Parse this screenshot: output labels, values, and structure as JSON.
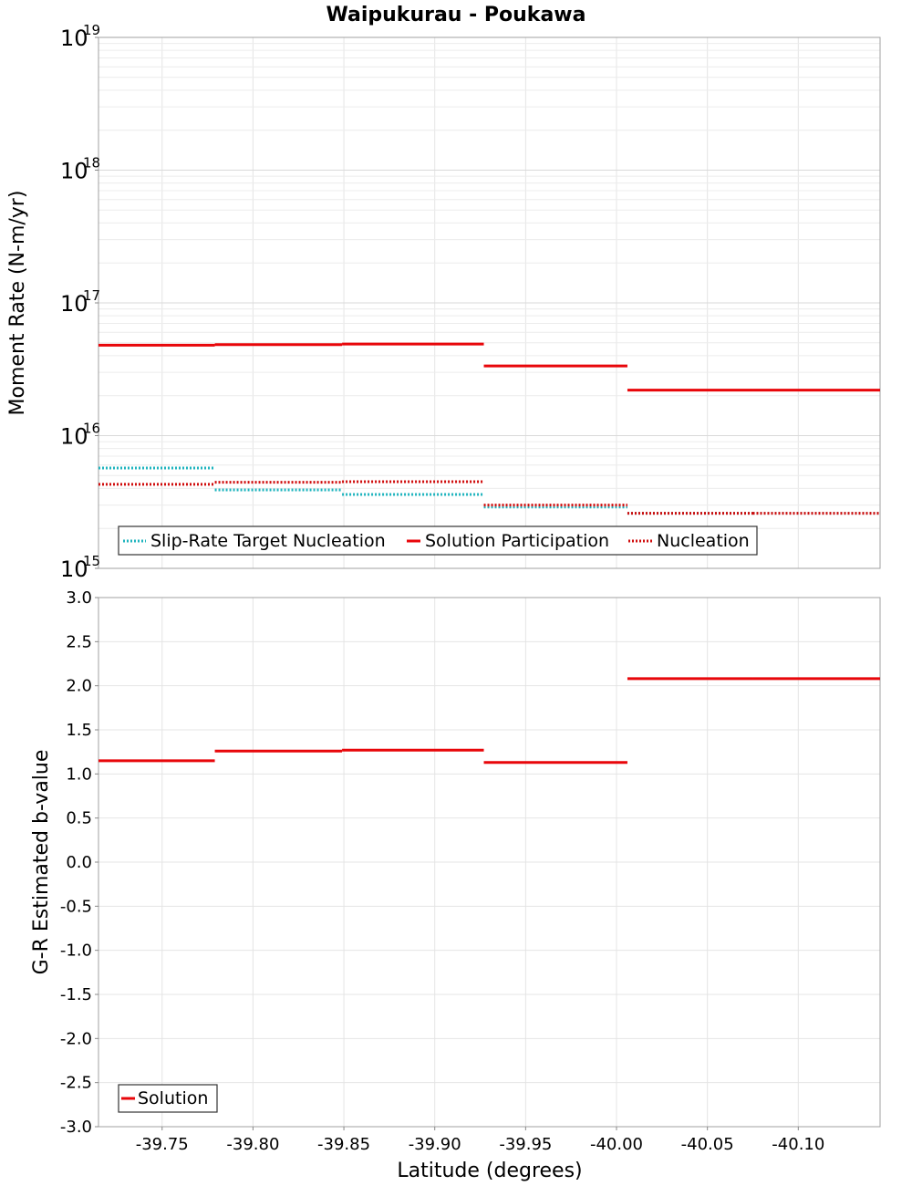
{
  "title": "Waipukurau - Poukawa",
  "colors": {
    "target": "#1fb4be",
    "participation": "#e8060a",
    "nucleation": "#d00c0c",
    "grid": "#e4e4e4",
    "frame": "#a0a0a0"
  },
  "chart_data": [
    {
      "type": "line",
      "ylabel": "Moment Rate (N-m/yr)",
      "yscale": "log",
      "ylim": [
        1000000000000000.0,
        1e+19
      ],
      "xlim": [
        -39.715,
        -40.145
      ],
      "y_tick_mantissa": "10",
      "y_tick_exponents": [
        "15",
        "16",
        "17",
        "18",
        "19"
      ],
      "legend": {
        "position": "bottom-left",
        "entries": [
          "Slip-Rate Target Nucleation",
          "Solution Participation",
          "Nucleation"
        ]
      },
      "series": [
        {
          "name": "Slip-Rate Target Nucleation",
          "style": "dotted",
          "segments": [
            {
              "x": [
                -39.715,
                -39.779
              ],
              "y": 5700000000000000.0
            },
            {
              "x": [
                -39.779,
                -39.849
              ],
              "y": 3900000000000000.0
            },
            {
              "x": [
                -39.849,
                -39.927
              ],
              "y": 3600000000000000.0
            },
            {
              "x": [
                -39.927,
                -40.006
              ],
              "y": 2900000000000000.0
            },
            {
              "x": [
                -40.006,
                -40.075
              ],
              "y": 2600000000000000.0
            },
            {
              "x": [
                -40.075,
                -40.145
              ],
              "y": 2600000000000000.0
            }
          ]
        },
        {
          "name": "Solution Participation",
          "style": "solid",
          "segments": [
            {
              "x": [
                -39.715,
                -39.779
              ],
              "y": 4.8e+16
            },
            {
              "x": [
                -39.779,
                -39.849
              ],
              "y": 4.85e+16
            },
            {
              "x": [
                -39.849,
                -39.927
              ],
              "y": 4.9e+16
            },
            {
              "x": [
                -39.927,
                -40.006
              ],
              "y": 3.35e+16
            },
            {
              "x": [
                -40.006,
                -40.075
              ],
              "y": 2.2e+16
            },
            {
              "x": [
                -40.075,
                -40.145
              ],
              "y": 2.2e+16
            }
          ]
        },
        {
          "name": "Nucleation",
          "style": "dotted",
          "segments": [
            {
              "x": [
                -39.715,
                -39.779
              ],
              "y": 4300000000000000.0
            },
            {
              "x": [
                -39.779,
                -39.849
              ],
              "y": 4450000000000000.0
            },
            {
              "x": [
                -39.849,
                -39.927
              ],
              "y": 4500000000000000.0
            },
            {
              "x": [
                -39.927,
                -40.006
              ],
              "y": 3000000000000000.0
            },
            {
              "x": [
                -40.006,
                -40.075
              ],
              "y": 2600000000000000.0
            },
            {
              "x": [
                -40.075,
                -40.145
              ],
              "y": 2600000000000000.0
            }
          ]
        }
      ]
    },
    {
      "type": "line",
      "xlabel": "Latitude (degrees)",
      "ylabel": "G-R Estimated b-value",
      "ylim": [
        -3.0,
        3.0
      ],
      "xlim": [
        -39.715,
        -40.145
      ],
      "yticks": [
        "3.0",
        "2.5",
        "2.0",
        "1.5",
        "1.0",
        "0.5",
        "0.0",
        "-0.5",
        "-1.0",
        "-1.5",
        "-2.0",
        "-2.5",
        "-3.0"
      ],
      "xticks": [
        "-39.75",
        "-39.80",
        "-39.85",
        "-39.90",
        "-39.95",
        "-40.00",
        "-40.05",
        "-40.10"
      ],
      "legend": {
        "position": "bottom-left",
        "entries": [
          "Solution"
        ]
      },
      "series": [
        {
          "name": "Solution",
          "style": "solid",
          "segments": [
            {
              "x": [
                -39.715,
                -39.779
              ],
              "y": 1.15
            },
            {
              "x": [
                -39.779,
                -39.849
              ],
              "y": 1.26
            },
            {
              "x": [
                -39.849,
                -39.927
              ],
              "y": 1.27
            },
            {
              "x": [
                -39.927,
                -40.006
              ],
              "y": 1.13
            },
            {
              "x": [
                -40.006,
                -40.075
              ],
              "y": 2.08
            },
            {
              "x": [
                -40.075,
                -40.145
              ],
              "y": 2.08
            }
          ]
        }
      ]
    }
  ]
}
